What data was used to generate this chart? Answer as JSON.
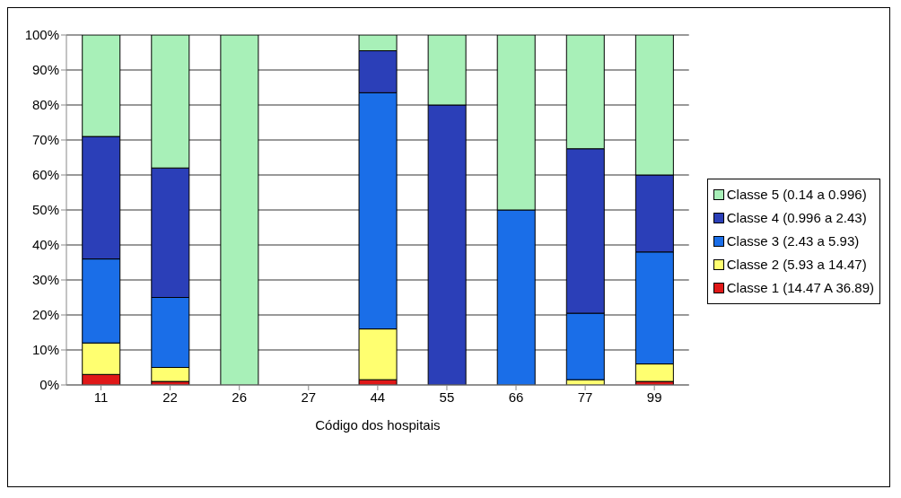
{
  "chart_data": {
    "type": "bar",
    "stacked": true,
    "xlabel": "Código dos hospitais",
    "categories": [
      "11",
      "22",
      "26",
      "27",
      "44",
      "55",
      "66",
      "77",
      "99"
    ],
    "series": [
      {
        "name": "Classe 1 (14.47 A 36.89)",
        "color": "#e01818",
        "values": [
          3,
          1,
          0,
          null,
          1.5,
          0,
          0,
          0,
          1
        ]
      },
      {
        "name": "Classe 2 (5.93 a 14.47)",
        "color": "#ffff70",
        "values": [
          9,
          4,
          0,
          null,
          14.5,
          0,
          0,
          1.5,
          5
        ]
      },
      {
        "name": "Classe 3 (2.43 a 5.93)",
        "color": "#1a6ee8",
        "values": [
          24,
          20,
          0,
          null,
          67.5,
          0,
          50,
          19,
          32
        ]
      },
      {
        "name": "Classe 4 (0.996 a 2.43)",
        "color": "#2b3fb8",
        "values": [
          35,
          37,
          0,
          null,
          12,
          80,
          0,
          47,
          22
        ]
      },
      {
        "name": "Classe 5 (0.14 a 0.996)",
        "color": "#a8f0b8",
        "values": [
          29,
          38,
          100,
          null,
          4.5,
          20,
          50,
          32.5,
          40
        ]
      }
    ],
    "ylim": [
      0,
      100
    ],
    "yticks": [
      {
        "value": 0,
        "label": "0%"
      },
      {
        "value": 10,
        "label": "10%"
      },
      {
        "value": 20,
        "label": "20%"
      },
      {
        "value": 30,
        "label": "30%"
      },
      {
        "value": 40,
        "label": "40%"
      },
      {
        "value": 50,
        "label": "50%"
      },
      {
        "value": 60,
        "label": "60%"
      },
      {
        "value": 70,
        "label": "70%"
      },
      {
        "value": 80,
        "label": "80%"
      },
      {
        "value": 90,
        "label": "90%"
      },
      {
        "value": 100,
        "label": "100%"
      }
    ],
    "grid": "y",
    "legend": "right"
  }
}
